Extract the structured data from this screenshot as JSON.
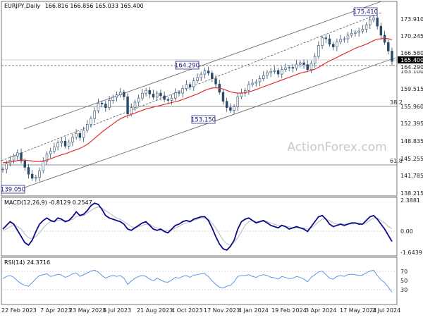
{
  "chart_data": {
    "type": "candlestick",
    "symbol_header": "EURJPY,Daily",
    "ohlc_header": "166.816 166.856 165.033 165.400",
    "watermark": "ActionForex.com",
    "x_tick_labels": [
      "22 Feb 2023",
      "7 Apr 2023",
      "23 May 2023",
      "6 Jul 2023",
      "21 Aug 2023",
      "4 Oct 2023",
      "17 Nov 2023",
      "4 Jan 2024",
      "19 Feb 2024",
      "3 Apr 2024",
      "17 May 2024",
      "2 Jul 2024"
    ],
    "price_panel": {
      "ylim": [
        136.0,
        178.5
      ],
      "y_tick_labels": [
        "173.910",
        "170.245",
        "166.580",
        "163.100",
        "159.515",
        "155.960",
        "152.395",
        "148.835",
        "145.255",
        "141.785",
        "138.215"
      ],
      "last_price_label": "165.400",
      "hline_label": "164.290",
      "annotations": [
        {
          "text": "175.410",
          "price": 175.41
        },
        {
          "text": "164.290",
          "price": 164.29
        },
        {
          "text": "153.150",
          "price": 153.15
        },
        {
          "text": "139.050",
          "price": 139.05
        }
      ],
      "fib_levels": [
        {
          "label": "38.2",
          "price": 155.96
        },
        {
          "label": "61.8",
          "price": 143.7
        }
      ],
      "series": [
        {
          "name": "Close",
          "values": [
            141.6,
            142.8,
            143.6,
            144.5,
            145.2,
            143.4,
            142.0,
            140.5,
            139.6,
            139.8,
            141.2,
            143.3,
            145.0,
            145.6,
            146.5,
            147.4,
            147.8,
            146.7,
            147.6,
            148.7,
            149.5,
            148.6,
            150.2,
            151.5,
            152.8,
            154.5,
            156.2,
            156.0,
            155.2,
            156.8,
            157.5,
            158.0,
            158.6,
            157.6,
            153.8,
            155.2,
            156.4,
            157.3,
            158.4,
            159.0,
            158.2,
            157.5,
            158.4,
            157.8,
            157.0,
            156.8,
            157.3,
            158.5,
            158.4,
            159.4,
            160.3,
            159.8,
            161.1,
            161.8,
            162.6,
            163.3,
            162.8,
            161.6,
            160.4,
            158.6,
            156.6,
            155.2,
            154.6,
            155.4,
            157.6,
            158.4,
            159.0,
            160.3,
            160.6,
            160.9,
            161.6,
            162.3,
            162.9,
            163.2,
            163.4,
            162.6,
            163.6,
            164.0,
            164.1,
            163.9,
            164.8,
            165.1,
            164.7,
            163.6,
            165.0,
            166.5,
            168.9,
            170.6,
            170.4,
            169.2,
            168.6,
            169.7,
            170.3,
            170.4,
            171.2,
            171.6,
            171.8,
            172.1,
            172.5,
            173.5,
            174.6,
            175.0,
            173.2,
            171.2,
            169.6,
            167.7,
            165.4
          ]
        },
        {
          "name": "MA55",
          "values": [
            143.0,
            143.1,
            143.2,
            143.3,
            143.5,
            143.6,
            143.6,
            143.5,
            143.4,
            143.3,
            143.3,
            143.4,
            143.6,
            143.9,
            144.2,
            144.5,
            144.8,
            145.0,
            145.3,
            145.6,
            145.9,
            146.2,
            146.6,
            147.1,
            147.7,
            148.4,
            149.1,
            149.8,
            150.4,
            151.0,
            151.6,
            152.2,
            152.7,
            153.1,
            153.4,
            153.7,
            154.0,
            154.3,
            154.6,
            154.9,
            155.1,
            155.3,
            155.5,
            155.7,
            155.9,
            156.1,
            156.3,
            156.5,
            156.7,
            157.0,
            157.3,
            157.6,
            157.9,
            158.2,
            158.6,
            159.0,
            159.3,
            159.5,
            159.6,
            159.5,
            159.3,
            159.0,
            158.7,
            158.5,
            158.4,
            158.4,
            158.5,
            158.7,
            158.9,
            159.2,
            159.5,
            159.8,
            160.1,
            160.4,
            160.7,
            161.0,
            161.3,
            161.6,
            161.9,
            162.2,
            162.5,
            162.8,
            163.0,
            163.2,
            163.4,
            163.7,
            164.1,
            164.6,
            165.1,
            165.5,
            165.9,
            166.3,
            166.7,
            167.1,
            167.5,
            167.9,
            168.3,
            168.6,
            168.9,
            169.2,
            169.6,
            170.0,
            170.3,
            170.4,
            170.5,
            170.4,
            170.2
          ]
        }
      ]
    },
    "macd_panel": {
      "label": "MACD(12,26,9) -0.8129 0.2547",
      "ylim": [
        -1.8,
        2.6
      ],
      "y_tick_labels": [
        "2.3881",
        "0.00",
        "-1.6439"
      ],
      "series": [
        {
          "name": "MACD",
          "values": [
            0.2,
            0.5,
            0.8,
            0.6,
            0.1,
            -0.4,
            -0.9,
            -1.1,
            -0.7,
            0.0,
            0.6,
            0.9,
            1.1,
            0.9,
            0.8,
            1.1,
            1.0,
            0.8,
            0.9,
            1.2,
            1.6,
            1.3,
            1.4,
            1.7,
            2.1,
            2.3,
            2.2,
            1.8,
            1.3,
            1.1,
            1.0,
            0.9,
            0.8,
            0.6,
            0.2,
            0.1,
            0.3,
            0.5,
            0.7,
            0.8,
            0.5,
            0.2,
            0.1,
            0.2,
            0.0,
            -0.1,
            0.2,
            0.5,
            0.6,
            0.8,
            0.9,
            0.8,
            1.0,
            1.1,
            1.2,
            1.2,
            0.9,
            0.3,
            -0.4,
            -1.0,
            -1.4,
            -1.5,
            -1.2,
            -0.7,
            0.2,
            0.8,
            1.0,
            1.1,
            0.9,
            0.7,
            0.8,
            0.9,
            0.7,
            0.5,
            0.4,
            0.3,
            0.5,
            0.4,
            0.2,
            0.3,
            0.4,
            0.3,
            0.2,
            0.0,
            0.4,
            0.8,
            1.2,
            1.3,
            1.0,
            0.6,
            0.4,
            0.5,
            0.6,
            0.5,
            0.6,
            0.7,
            0.7,
            0.6,
            0.6,
            0.9,
            1.2,
            1.3,
            1.0,
            0.6,
            0.2,
            -0.3,
            -0.8
          ]
        },
        {
          "name": "Signal",
          "values": [
            0.1,
            0.2,
            0.4,
            0.5,
            0.4,
            0.2,
            -0.2,
            -0.5,
            -0.6,
            -0.4,
            -0.1,
            0.3,
            0.6,
            0.8,
            0.8,
            0.9,
            0.9,
            0.9,
            0.9,
            1.0,
            1.2,
            1.3,
            1.3,
            1.5,
            1.7,
            1.9,
            2.0,
            1.9,
            1.7,
            1.5,
            1.3,
            1.1,
            1.0,
            0.8,
            0.6,
            0.4,
            0.3,
            0.4,
            0.5,
            0.6,
            0.6,
            0.4,
            0.3,
            0.2,
            0.1,
            0.1,
            0.1,
            0.3,
            0.4,
            0.6,
            0.7,
            0.8,
            0.9,
            1.0,
            1.1,
            1.1,
            1.0,
            0.7,
            0.3,
            -0.2,
            -0.7,
            -1.0,
            -1.1,
            -0.9,
            -0.5,
            0.0,
            0.5,
            0.8,
            0.9,
            0.8,
            0.8,
            0.8,
            0.8,
            0.7,
            0.6,
            0.5,
            0.5,
            0.4,
            0.4,
            0.3,
            0.3,
            0.3,
            0.3,
            0.2,
            0.3,
            0.5,
            0.8,
            1.0,
            1.0,
            0.9,
            0.7,
            0.6,
            0.6,
            0.6,
            0.6,
            0.6,
            0.7,
            0.7,
            0.6,
            0.7,
            0.9,
            1.1,
            1.1,
            0.9,
            0.7,
            0.4,
            0.25
          ]
        }
      ]
    },
    "rsi_panel": {
      "label": "RSI(14) 24.3716",
      "ylim": [
        0,
        100
      ],
      "y_tick_labels": [
        "70",
        "50",
        "30"
      ],
      "guide_levels": [
        70,
        30
      ],
      "series": [
        {
          "name": "RSI",
          "values": [
            55,
            60,
            62,
            58,
            50,
            44,
            40,
            38,
            46,
            55,
            62,
            64,
            66,
            60,
            62,
            65,
            63,
            58,
            61,
            66,
            68,
            60,
            64,
            68,
            72,
            74,
            70,
            62,
            56,
            60,
            62,
            60,
            62,
            56,
            42,
            50,
            56,
            60,
            62,
            60,
            54,
            50,
            56,
            52,
            48,
            47,
            52,
            58,
            56,
            60,
            62,
            58,
            63,
            64,
            66,
            66,
            60,
            50,
            42,
            36,
            34,
            38,
            40,
            48,
            60,
            62,
            62,
            64,
            60,
            58,
            62,
            64,
            62,
            58,
            57,
            54,
            60,
            58,
            55,
            56,
            60,
            58,
            54,
            48,
            58,
            64,
            70,
            72,
            64,
            56,
            54,
            60,
            62,
            60,
            64,
            65,
            64,
            62,
            63,
            68,
            72,
            74,
            62,
            52,
            46,
            36,
            24.4
          ]
        }
      ]
    }
  }
}
